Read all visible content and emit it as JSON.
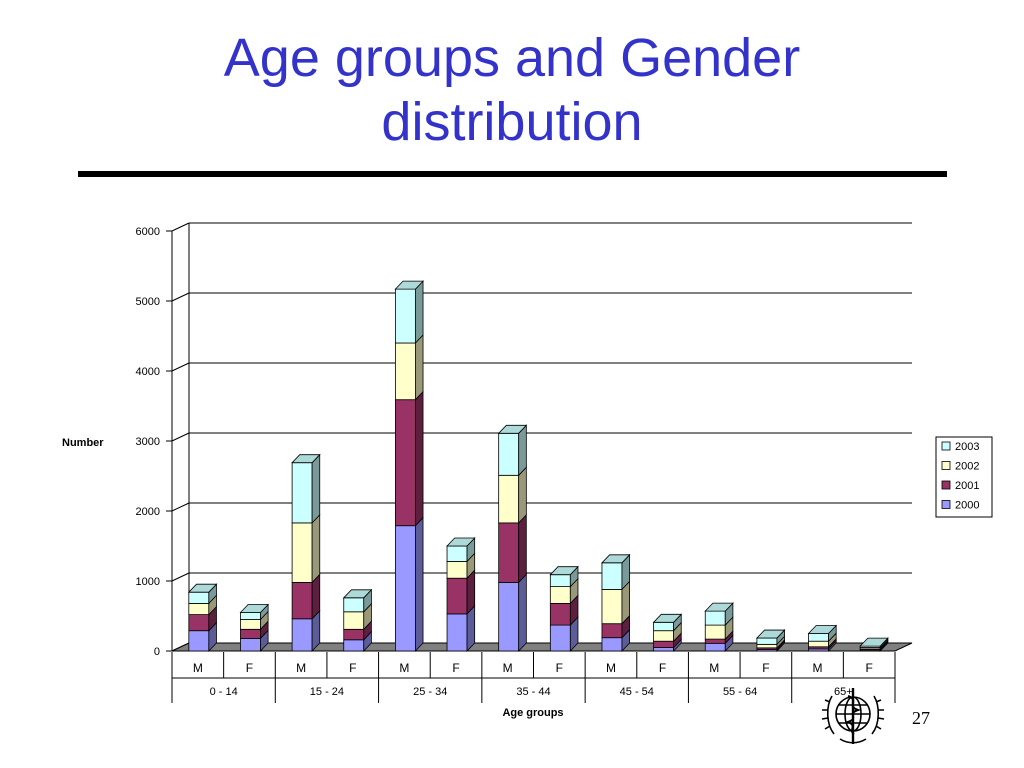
{
  "slide": {
    "title_line1": "Age groups and Gender",
    "title_line2": "distribution",
    "page_number": "27"
  },
  "colors": {
    "title": "#3333cc",
    "series_2000": "#9999ff",
    "series_2001": "#993366",
    "series_2002": "#ffffcc",
    "series_2003": "#ccffff"
  },
  "logo_icon": "who-emblem-icon",
  "chart_data": {
    "type": "bar",
    "stacked": true,
    "three_d": true,
    "ylabel": "Number",
    "xlabel": "Age groups",
    "ylim": [
      0,
      6000
    ],
    "yticks": [
      0,
      1000,
      2000,
      3000,
      4000,
      5000,
      6000
    ],
    "grid": true,
    "legend_position": "right",
    "categories": [
      "M",
      "F",
      "M",
      "F",
      "M",
      "F",
      "M",
      "F",
      "M",
      "F",
      "M",
      "F",
      "M",
      "F"
    ],
    "groups": [
      {
        "label": "0 - 14",
        "span": 2
      },
      {
        "label": "15 - 24",
        "span": 2
      },
      {
        "label": "25 - 34",
        "span": 2
      },
      {
        "label": "35 - 44",
        "span": 2
      },
      {
        "label": "45 - 54",
        "span": 2
      },
      {
        "label": "55 - 64",
        "span": 2
      },
      {
        "label": "65+",
        "span": 2
      }
    ],
    "series": [
      {
        "name": "2000",
        "color": "#9999ff",
        "values": [
          290,
          180,
          460,
          160,
          1790,
          530,
          980,
          370,
          190,
          50,
          110,
          20,
          30,
          15
        ]
      },
      {
        "name": "2001",
        "color": "#993366",
        "values": [
          230,
          130,
          520,
          150,
          1800,
          510,
          850,
          310,
          200,
          90,
          60,
          25,
          30,
          15
        ]
      },
      {
        "name": "2002",
        "color": "#ffffcc",
        "values": [
          160,
          140,
          850,
          250,
          810,
          240,
          680,
          240,
          490,
          150,
          200,
          50,
          80,
          20
        ]
      },
      {
        "name": "2003",
        "color": "#ccffff",
        "values": [
          160,
          100,
          860,
          200,
          770,
          220,
          600,
          170,
          380,
          120,
          200,
          90,
          110,
          20
        ]
      }
    ]
  }
}
